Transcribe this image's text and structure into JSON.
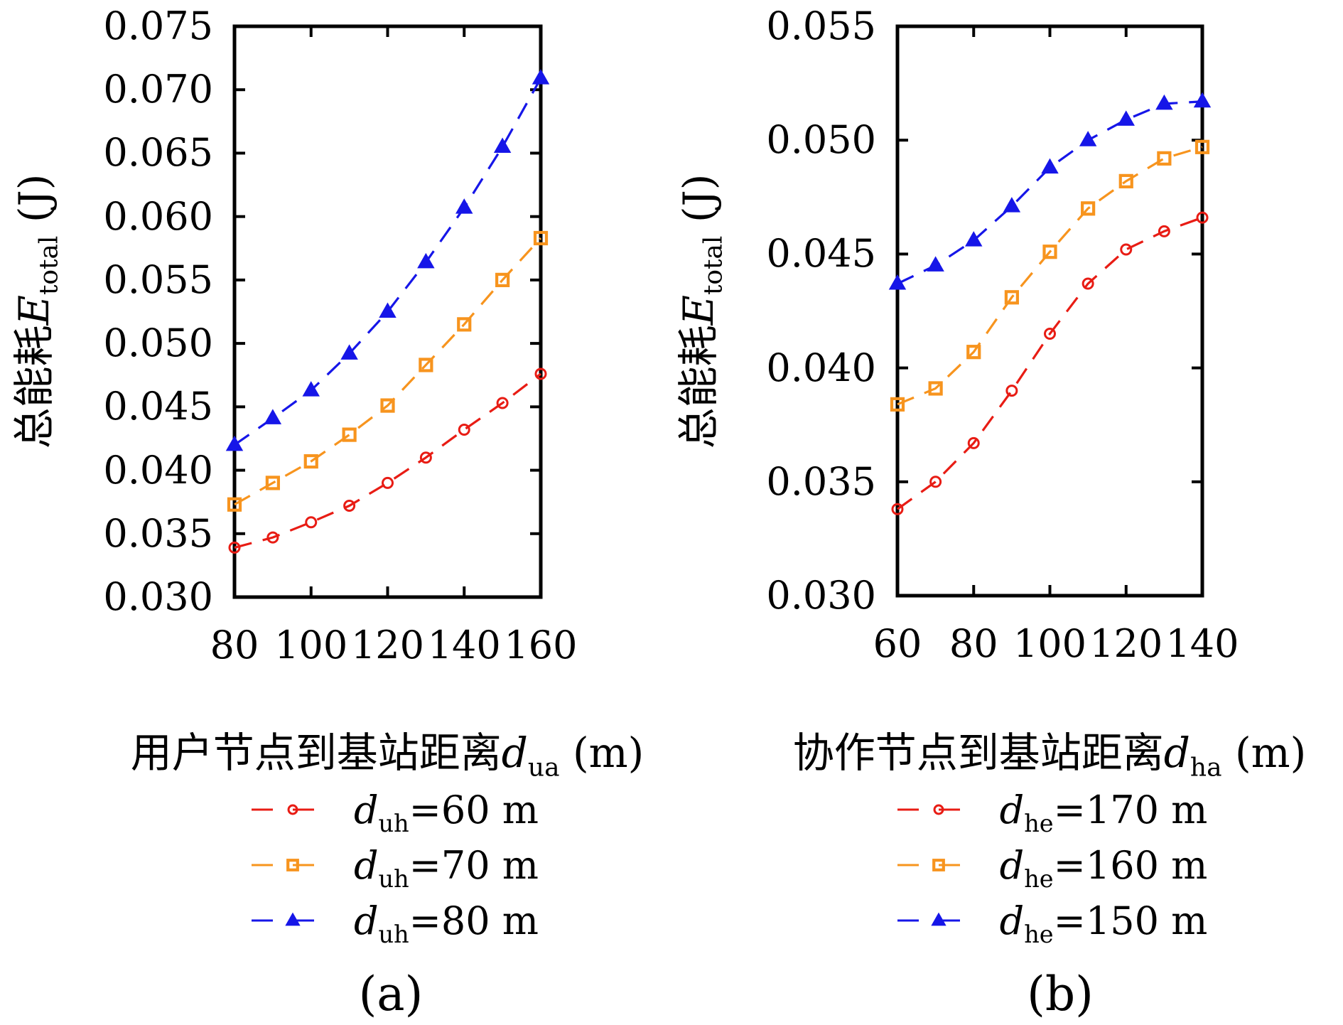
{
  "figure": {
    "background": "#ffffff",
    "axis_color": "#000000"
  },
  "colors": {
    "red": "#e81c14",
    "orange": "#f7941e",
    "blue": "#1616e8",
    "axis": "#000000"
  },
  "panels": {
    "a": {
      "caption": "(a)",
      "ylabel_prefix": "总能耗",
      "ylabel_var": "E",
      "ylabel_sub": "total",
      "ylabel_suffix": " (J)",
      "xlabel_prefix": "用户节点到基站距离",
      "xlabel_var": "d",
      "xlabel_sub": "ua",
      "xlabel_suffix": " (m)",
      "legend": [
        {
          "var": "d",
          "sub": "uh",
          "rest": "=60 m"
        },
        {
          "var": "d",
          "sub": "uh",
          "rest": "=70 m"
        },
        {
          "var": "d",
          "sub": "uh",
          "rest": "=80 m"
        }
      ]
    },
    "b": {
      "caption": "(b)",
      "ylabel_prefix": "总能耗",
      "ylabel_var": "E",
      "ylabel_sub": "total",
      "ylabel_suffix": " (J)",
      "xlabel_prefix": "协作节点到基站距离",
      "xlabel_var": "d",
      "xlabel_sub": "ha",
      "xlabel_suffix": " (m)",
      "legend": [
        {
          "var": "d",
          "sub": "he",
          "rest": "=170 m"
        },
        {
          "var": "d",
          "sub": "he",
          "rest": "=160 m"
        },
        {
          "var": "d",
          "sub": "he",
          "rest": "=150 m"
        }
      ]
    }
  },
  "chart_data": [
    {
      "type": "line",
      "panel": "a",
      "xlabel": "用户节点到基站距离 d_ua (m)",
      "ylabel": "总能耗 E_total (J)",
      "x": [
        80,
        90,
        100,
        110,
        120,
        130,
        140,
        150,
        160
      ],
      "xlim": [
        80,
        160
      ],
      "ylim": [
        0.03,
        0.075
      ],
      "x_tick_values": [
        80,
        100,
        120,
        140,
        160
      ],
      "x_tick_labels": [
        "80",
        "100",
        "120",
        "140",
        "160"
      ],
      "y_tick_values": [
        0.03,
        0.035,
        0.04,
        0.045,
        0.05,
        0.055,
        0.06,
        0.065,
        0.07,
        0.075
      ],
      "y_tick_labels": [
        "0.030",
        "0.035",
        "0.040",
        "0.045",
        "0.050",
        "0.055",
        "0.060",
        "0.065",
        "0.070",
        "0.075"
      ],
      "grid": false,
      "legend_position": "below",
      "series": [
        {
          "name": "d_uh=60 m",
          "color_key": "red",
          "marker": "circle",
          "marker_filled": false,
          "linestyle": "dashed",
          "values": [
            0.0339,
            0.0347,
            0.0359,
            0.0372,
            0.039,
            0.041,
            0.0432,
            0.0453,
            0.0476
          ]
        },
        {
          "name": "d_uh=70 m",
          "color_key": "orange",
          "marker": "square",
          "marker_filled": false,
          "linestyle": "dashed",
          "values": [
            0.0373,
            0.039,
            0.0407,
            0.0428,
            0.0451,
            0.0483,
            0.0515,
            0.055,
            0.0583
          ]
        },
        {
          "name": "d_uh=80 m",
          "color_key": "blue",
          "marker": "triangle",
          "marker_filled": true,
          "linestyle": "dashed",
          "values": [
            0.042,
            0.0441,
            0.0463,
            0.0492,
            0.0525,
            0.0564,
            0.0607,
            0.0655,
            0.0709
          ]
        }
      ]
    },
    {
      "type": "line",
      "panel": "b",
      "xlabel": "协作节点到基站距离 d_ha (m)",
      "ylabel": "总能耗 E_total (J)",
      "x": [
        60,
        70,
        80,
        90,
        100,
        110,
        120,
        130,
        140
      ],
      "xlim": [
        60,
        140
      ],
      "ylim": [
        0.03,
        0.055
      ],
      "x_tick_values": [
        60,
        80,
        100,
        120,
        140
      ],
      "x_tick_labels": [
        "60",
        "80",
        "100",
        "120",
        "140"
      ],
      "y_tick_values": [
        0.03,
        0.035,
        0.04,
        0.045,
        0.05,
        0.055
      ],
      "y_tick_labels": [
        "0.030",
        "0.035",
        "0.040",
        "0.045",
        "0.050",
        "0.055"
      ],
      "grid": false,
      "legend_position": "below",
      "series": [
        {
          "name": "d_he=170 m",
          "color_key": "red",
          "marker": "circle",
          "marker_filled": false,
          "linestyle": "dashed",
          "values": [
            0.0338,
            0.035,
            0.0367,
            0.039,
            0.0415,
            0.0437,
            0.0452,
            0.046,
            0.0466
          ]
        },
        {
          "name": "d_he=160 m",
          "color_key": "orange",
          "marker": "square",
          "marker_filled": false,
          "linestyle": "dashed",
          "values": [
            0.0384,
            0.0391,
            0.0407,
            0.0431,
            0.0451,
            0.047,
            0.0482,
            0.0492,
            0.0497
          ]
        },
        {
          "name": "d_he=150 m",
          "color_key": "blue",
          "marker": "triangle",
          "marker_filled": true,
          "linestyle": "dashed",
          "values": [
            0.0437,
            0.0445,
            0.0456,
            0.0471,
            0.0488,
            0.05,
            0.0509,
            0.0516,
            0.0517
          ]
        }
      ]
    }
  ]
}
